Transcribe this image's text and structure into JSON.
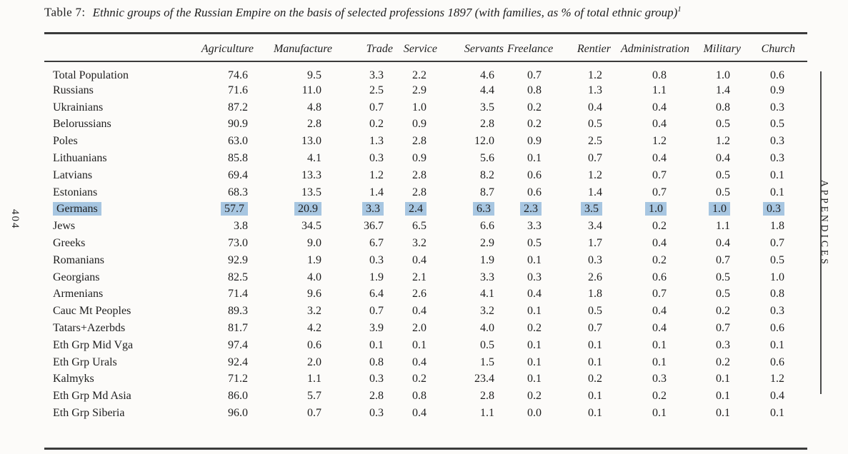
{
  "page": {
    "page_number": "404",
    "running_head": "APPENDICES"
  },
  "title": {
    "label": "Table 7:",
    "text": "Ethnic groups of the Russian Empire on the basis of selected professions 1897 (with families, as % of total ethnic group)",
    "footnote_marker": "1"
  },
  "highlight": {
    "row": "Germans",
    "color": "#a7c6e1"
  },
  "chart_data": {
    "type": "table",
    "columns": [
      "Agriculture",
      "Manufacture",
      "Trade",
      "Service",
      "Servants",
      "Freelance",
      "Rentier",
      "Administration",
      "Military",
      "Church"
    ],
    "rows": [
      {
        "label": "Total Population",
        "highlighted": false,
        "values": [
          "74.6",
          "9.5",
          "3.3",
          "2.2",
          "4.6",
          "0.7",
          "1.2",
          "0.8",
          "1.0",
          "0.6"
        ]
      },
      {
        "label": "Russians",
        "highlighted": false,
        "values": [
          "71.6",
          "11.0",
          "2.5",
          "2.9",
          "4.4",
          "0.8",
          "1.3",
          "1.1",
          "1.4",
          "0.9"
        ]
      },
      {
        "label": "Ukrainians",
        "highlighted": false,
        "values": [
          "87.2",
          "4.8",
          "0.7",
          "1.0",
          "3.5",
          "0.2",
          "0.4",
          "0.4",
          "0.8",
          "0.3"
        ]
      },
      {
        "label": "Belorussians",
        "highlighted": false,
        "values": [
          "90.9",
          "2.8",
          "0.2",
          "0.9",
          "2.8",
          "0.2",
          "0.5",
          "0.4",
          "0.5",
          "0.5"
        ]
      },
      {
        "label": "Poles",
        "highlighted": false,
        "values": [
          "63.0",
          "13.0",
          "1.3",
          "2.8",
          "12.0",
          "0.9",
          "2.5",
          "1.2",
          "1.2",
          "0.3"
        ]
      },
      {
        "label": "Lithuanians",
        "highlighted": false,
        "values": [
          "85.8",
          "4.1",
          "0.3",
          "0.9",
          "5.6",
          "0.1",
          "0.7",
          "0.4",
          "0.4",
          "0.3"
        ]
      },
      {
        "label": "Latvians",
        "highlighted": false,
        "values": [
          "69.4",
          "13.3",
          "1.2",
          "2.8",
          "8.2",
          "0.6",
          "1.2",
          "0.7",
          "0.5",
          "0.1"
        ]
      },
      {
        "label": "Estonians",
        "highlighted": false,
        "values": [
          "68.3",
          "13.5",
          "1.4",
          "2.8",
          "8.7",
          "0.6",
          "1.4",
          "0.7",
          "0.5",
          "0.1"
        ]
      },
      {
        "label": "Germans",
        "highlighted": true,
        "values": [
          "57.7",
          "20.9",
          "3.3",
          "2.4",
          "6.3",
          "2.3",
          "3.5",
          "1.0",
          "1.0",
          "0.3"
        ]
      },
      {
        "label": "Jews",
        "highlighted": false,
        "values": [
          "3.8",
          "34.5",
          "36.7",
          "6.5",
          "6.6",
          "3.3",
          "3.4",
          "0.2",
          "1.1",
          "1.8"
        ]
      },
      {
        "label": "Greeks",
        "highlighted": false,
        "values": [
          "73.0",
          "9.0",
          "6.7",
          "3.2",
          "2.9",
          "0.5",
          "1.7",
          "0.4",
          "0.4",
          "0.7"
        ]
      },
      {
        "label": "Romanians",
        "highlighted": false,
        "values": [
          "92.9",
          "1.9",
          "0.3",
          "0.4",
          "1.9",
          "0.1",
          "0.3",
          "0.2",
          "0.7",
          "0.5"
        ]
      },
      {
        "label": "Georgians",
        "highlighted": false,
        "values": [
          "82.5",
          "4.0",
          "1.9",
          "2.1",
          "3.3",
          "0.3",
          "2.6",
          "0.6",
          "0.5",
          "1.0"
        ]
      },
      {
        "label": "Armenians",
        "highlighted": false,
        "values": [
          "71.4",
          "9.6",
          "6.4",
          "2.6",
          "4.1",
          "0.4",
          "1.8",
          "0.7",
          "0.5",
          "0.8"
        ]
      },
      {
        "label": "Cauc Mt Peoples",
        "highlighted": false,
        "values": [
          "89.3",
          "3.2",
          "0.7",
          "0.4",
          "3.2",
          "0.1",
          "0.5",
          "0.4",
          "0.2",
          "0.3"
        ]
      },
      {
        "label": "Tatars+Azerbds",
        "highlighted": false,
        "values": [
          "81.7",
          "4.2",
          "3.9",
          "2.0",
          "4.0",
          "0.2",
          "0.7",
          "0.4",
          "0.7",
          "0.6"
        ]
      },
      {
        "label": "Eth Grp Mid Vga",
        "highlighted": false,
        "values": [
          "97.4",
          "0.6",
          "0.1",
          "0.1",
          "0.5",
          "0.1",
          "0.1",
          "0.1",
          "0.3",
          "0.1"
        ]
      },
      {
        "label": "Eth Grp Urals",
        "highlighted": false,
        "values": [
          "92.4",
          "2.0",
          "0.8",
          "0.4",
          "1.5",
          "0.1",
          "0.1",
          "0.1",
          "0.2",
          "0.6"
        ]
      },
      {
        "label": "Kalmyks",
        "highlighted": false,
        "values": [
          "71.2",
          "1.1",
          "0.3",
          "0.2",
          "23.4",
          "0.1",
          "0.2",
          "0.3",
          "0.1",
          "1.2"
        ]
      },
      {
        "label": "Eth Grp Md Asia",
        "highlighted": false,
        "values": [
          "86.0",
          "5.7",
          "2.8",
          "0.8",
          "2.8",
          "0.2",
          "0.1",
          "0.2",
          "0.1",
          "0.4"
        ]
      },
      {
        "label": "Eth Grp Siberia",
        "highlighted": false,
        "values": [
          "96.0",
          "0.7",
          "0.3",
          "0.4",
          "1.1",
          "0.0",
          "0.1",
          "0.1",
          "0.1",
          "0.1"
        ]
      }
    ]
  }
}
